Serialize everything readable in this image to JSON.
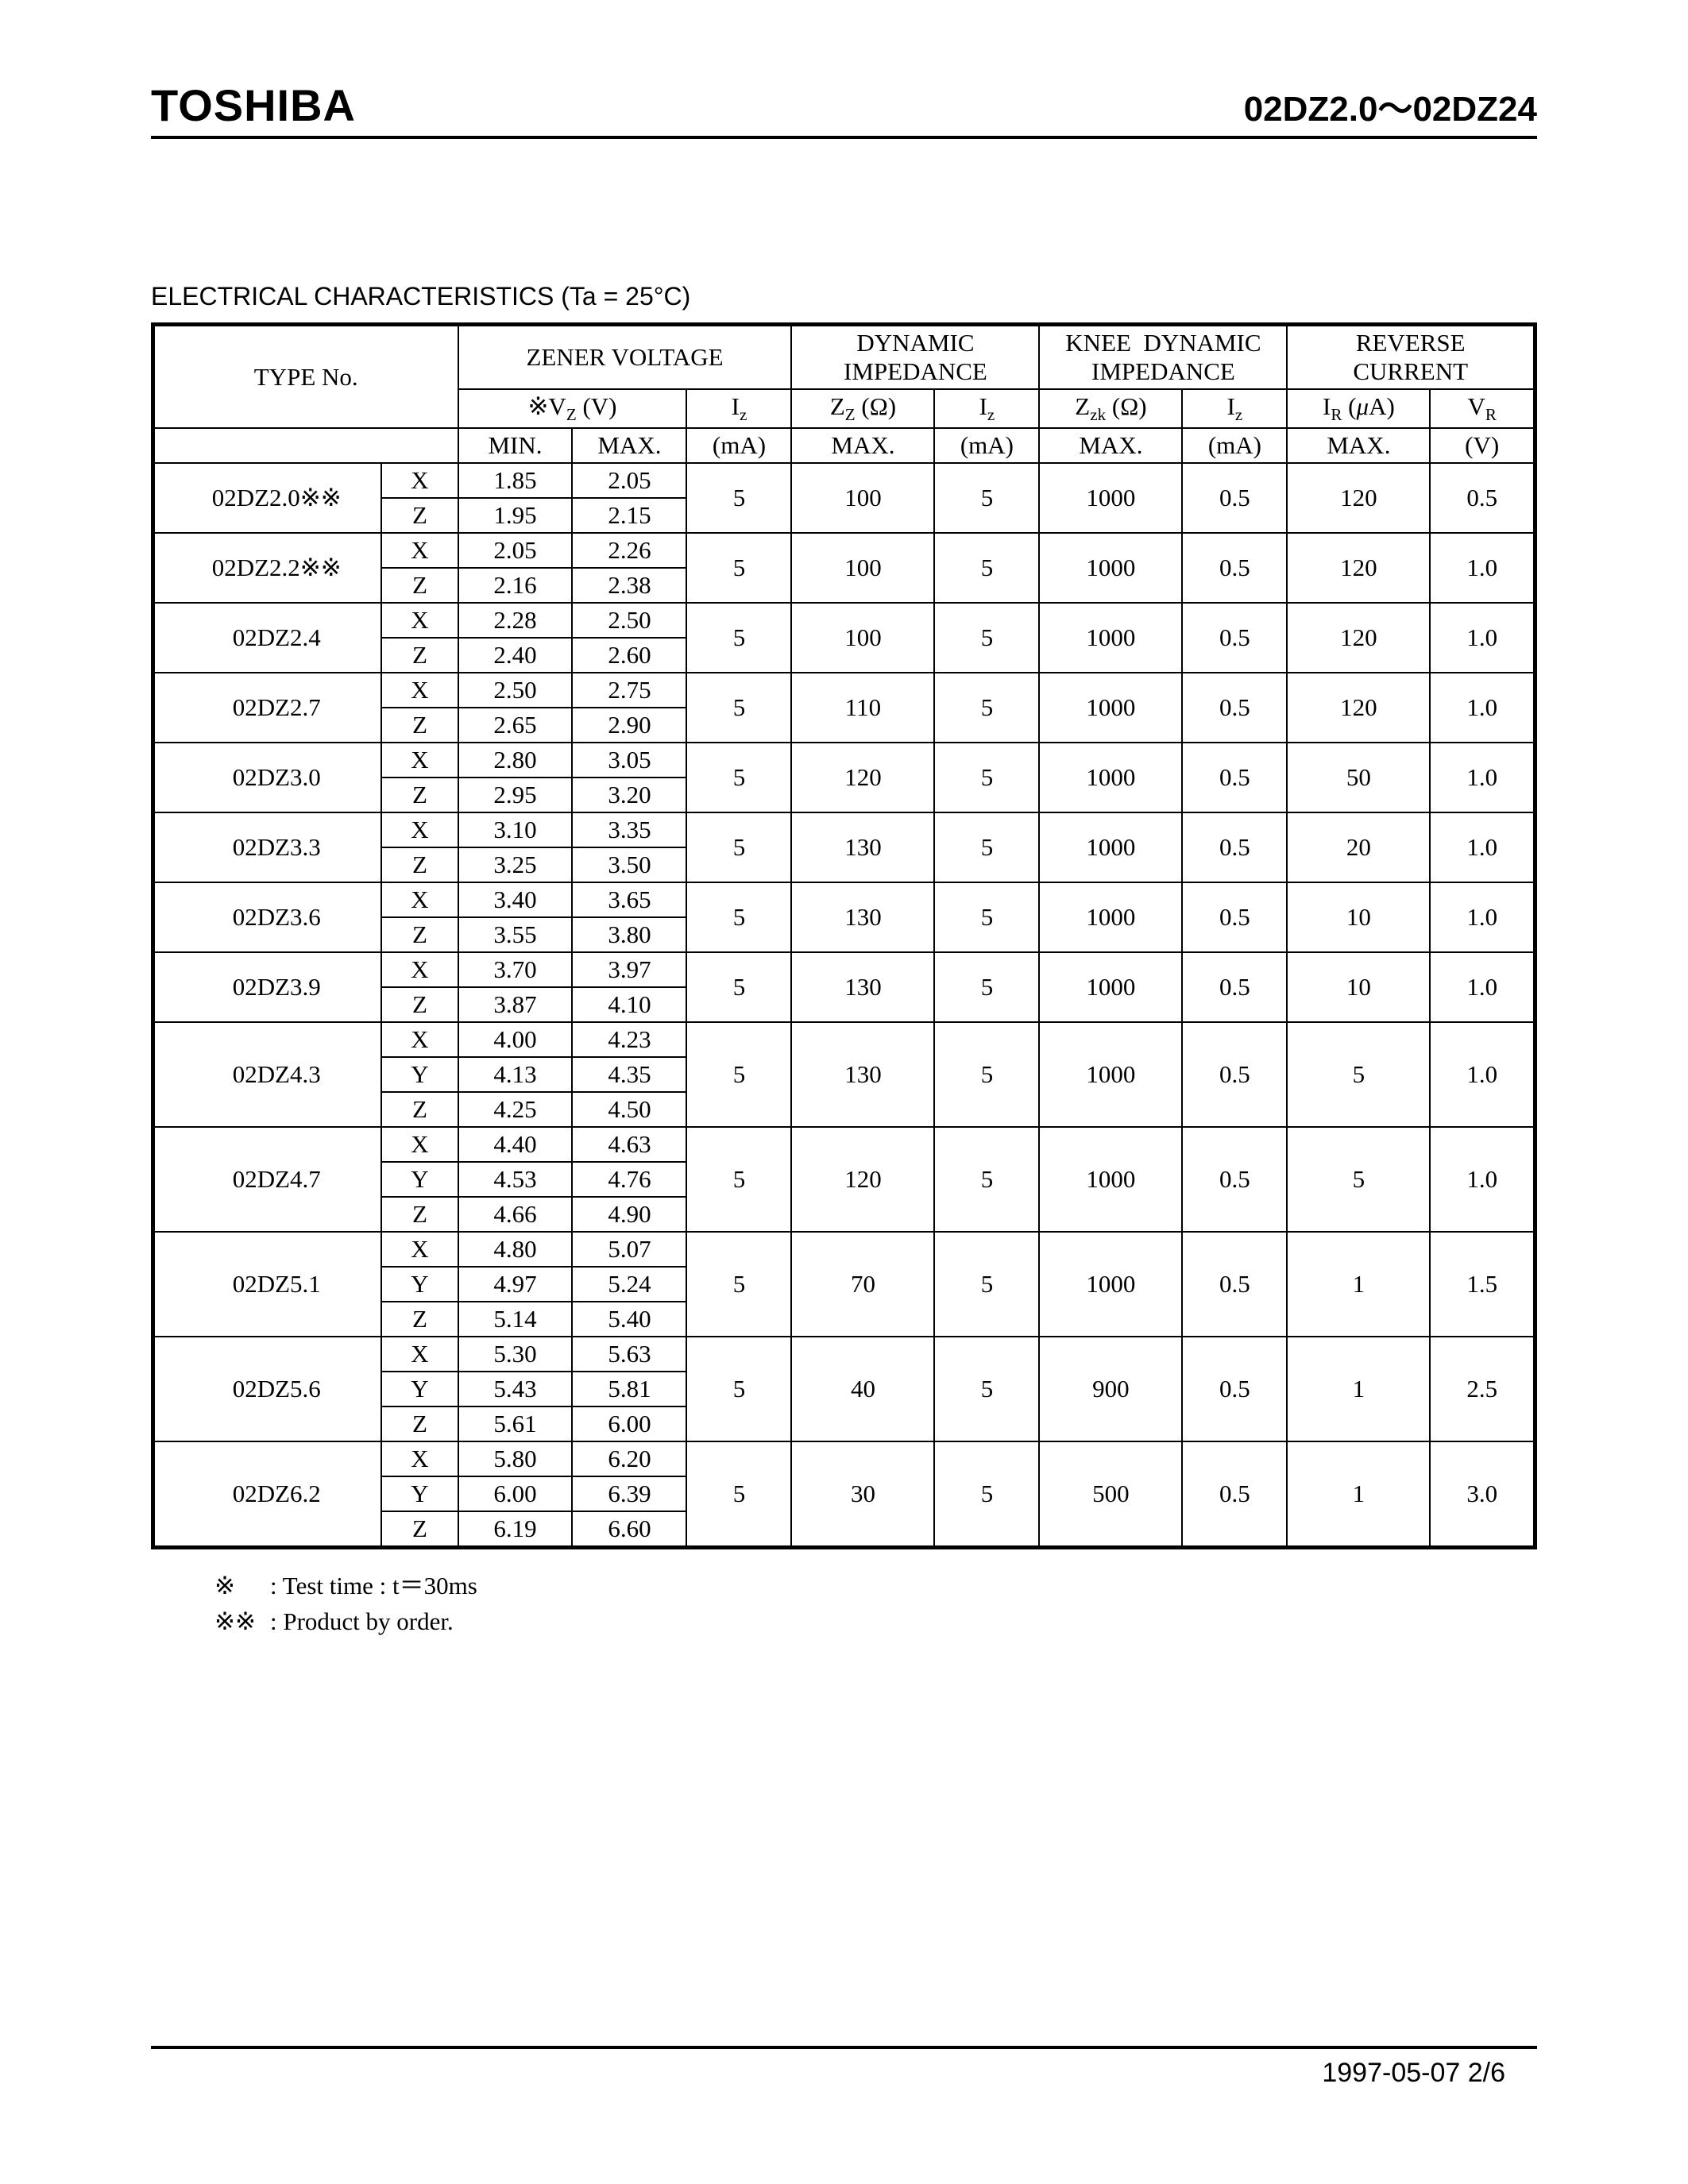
{
  "header": {
    "brand": "TOSHIBA",
    "part_range": "02DZ2.0～02DZ24"
  },
  "section_title": "ELECTRICAL  CHARACTERISTICS (Ta = 25°C)",
  "columns": {
    "type_no": "TYPE  No.",
    "zener_voltage": "ZENER  VOLTAGE",
    "dynamic_impedance": "DYNAMIC IMPEDANCE",
    "knee_dynamic_impedance": "KNEE  DYNAMIC IMPEDANCE",
    "reverse_current": "REVERSE CURRENT",
    "vz": "※V",
    "vz_sub": "Z",
    "vz_unit": "(V)",
    "iz": "I",
    "iz_sub": "z",
    "zz": "Z",
    "zz_sub": "Z",
    "zz_unit": "(Ω)",
    "zzk": "Z",
    "zzk_sub": "zk",
    "zzk_unit": "(Ω)",
    "ir": "I",
    "ir_sub": "R",
    "ir_unit_pre": "(",
    "ir_unit_mu": "μ",
    "ir_unit_post": "A)",
    "vr": "V",
    "vr_sub": "R",
    "min": "MIN.",
    "max": "MAX.",
    "ma": "(mA)",
    "v_unit": "(V)"
  },
  "rows": [
    {
      "type": "02DZ2.0※※",
      "subs": [
        {
          "s": "X",
          "min": "1.85",
          "max": "2.05"
        },
        {
          "s": "Z",
          "min": "1.95",
          "max": "2.15"
        }
      ],
      "iz1": "5",
      "zz": "100",
      "iz2": "5",
      "zzk": "1000",
      "iz3": "0.5",
      "ir": "120",
      "vr": "0.5"
    },
    {
      "type": "02DZ2.2※※",
      "subs": [
        {
          "s": "X",
          "min": "2.05",
          "max": "2.26"
        },
        {
          "s": "Z",
          "min": "2.16",
          "max": "2.38"
        }
      ],
      "iz1": "5",
      "zz": "100",
      "iz2": "5",
      "zzk": "1000",
      "iz3": "0.5",
      "ir": "120",
      "vr": "1.0"
    },
    {
      "type": "02DZ2.4",
      "subs": [
        {
          "s": "X",
          "min": "2.28",
          "max": "2.50"
        },
        {
          "s": "Z",
          "min": "2.40",
          "max": "2.60"
        }
      ],
      "iz1": "5",
      "zz": "100",
      "iz2": "5",
      "zzk": "1000",
      "iz3": "0.5",
      "ir": "120",
      "vr": "1.0"
    },
    {
      "type": "02DZ2.7",
      "subs": [
        {
          "s": "X",
          "min": "2.50",
          "max": "2.75"
        },
        {
          "s": "Z",
          "min": "2.65",
          "max": "2.90"
        }
      ],
      "iz1": "5",
      "zz": "110",
      "iz2": "5",
      "zzk": "1000",
      "iz3": "0.5",
      "ir": "120",
      "vr": "1.0"
    },
    {
      "type": "02DZ3.0",
      "subs": [
        {
          "s": "X",
          "min": "2.80",
          "max": "3.05"
        },
        {
          "s": "Z",
          "min": "2.95",
          "max": "3.20"
        }
      ],
      "iz1": "5",
      "zz": "120",
      "iz2": "5",
      "zzk": "1000",
      "iz3": "0.5",
      "ir": "50",
      "vr": "1.0"
    },
    {
      "type": "02DZ3.3",
      "subs": [
        {
          "s": "X",
          "min": "3.10",
          "max": "3.35"
        },
        {
          "s": "Z",
          "min": "3.25",
          "max": "3.50"
        }
      ],
      "iz1": "5",
      "zz": "130",
      "iz2": "5",
      "zzk": "1000",
      "iz3": "0.5",
      "ir": "20",
      "vr": "1.0"
    },
    {
      "type": "02DZ3.6",
      "subs": [
        {
          "s": "X",
          "min": "3.40",
          "max": "3.65"
        },
        {
          "s": "Z",
          "min": "3.55",
          "max": "3.80"
        }
      ],
      "iz1": "5",
      "zz": "130",
      "iz2": "5",
      "zzk": "1000",
      "iz3": "0.5",
      "ir": "10",
      "vr": "1.0"
    },
    {
      "type": "02DZ3.9",
      "subs": [
        {
          "s": "X",
          "min": "3.70",
          "max": "3.97"
        },
        {
          "s": "Z",
          "min": "3.87",
          "max": "4.10"
        }
      ],
      "iz1": "5",
      "zz": "130",
      "iz2": "5",
      "zzk": "1000",
      "iz3": "0.5",
      "ir": "10",
      "vr": "1.0"
    },
    {
      "type": "02DZ4.3",
      "subs": [
        {
          "s": "X",
          "min": "4.00",
          "max": "4.23"
        },
        {
          "s": "Y",
          "min": "4.13",
          "max": "4.35"
        },
        {
          "s": "Z",
          "min": "4.25",
          "max": "4.50"
        }
      ],
      "iz1": "5",
      "zz": "130",
      "iz2": "5",
      "zzk": "1000",
      "iz3": "0.5",
      "ir": "5",
      "vr": "1.0"
    },
    {
      "type": "02DZ4.7",
      "subs": [
        {
          "s": "X",
          "min": "4.40",
          "max": "4.63"
        },
        {
          "s": "Y",
          "min": "4.53",
          "max": "4.76"
        },
        {
          "s": "Z",
          "min": "4.66",
          "max": "4.90"
        }
      ],
      "iz1": "5",
      "zz": "120",
      "iz2": "5",
      "zzk": "1000",
      "iz3": "0.5",
      "ir": "5",
      "vr": "1.0"
    },
    {
      "type": "02DZ5.1",
      "subs": [
        {
          "s": "X",
          "min": "4.80",
          "max": "5.07"
        },
        {
          "s": "Y",
          "min": "4.97",
          "max": "5.24"
        },
        {
          "s": "Z",
          "min": "5.14",
          "max": "5.40"
        }
      ],
      "iz1": "5",
      "zz": "70",
      "iz2": "5",
      "zzk": "1000",
      "iz3": "0.5",
      "ir": "1",
      "vr": "1.5"
    },
    {
      "type": "02DZ5.6",
      "subs": [
        {
          "s": "X",
          "min": "5.30",
          "max": "5.63"
        },
        {
          "s": "Y",
          "min": "5.43",
          "max": "5.81"
        },
        {
          "s": "Z",
          "min": "5.61",
          "max": "6.00"
        }
      ],
      "iz1": "5",
      "zz": "40",
      "iz2": "5",
      "zzk": "900",
      "iz3": "0.5",
      "ir": "1",
      "vr": "2.5"
    },
    {
      "type": "02DZ6.2",
      "subs": [
        {
          "s": "X",
          "min": "5.80",
          "max": "6.20"
        },
        {
          "s": "Y",
          "min": "6.00",
          "max": "6.39"
        },
        {
          "s": "Z",
          "min": "6.19",
          "max": "6.60"
        }
      ],
      "iz1": "5",
      "zz": "30",
      "iz2": "5",
      "zzk": "500",
      "iz3": "0.5",
      "ir": "1",
      "vr": "3.0"
    }
  ],
  "footnotes": {
    "one_sym": "※",
    "one_text": ": Test  time  :  t＝30ms",
    "two_sym": "※※",
    "two_text": ": Product  by  order."
  },
  "footer": {
    "date_page": "1997-05-07    2/6"
  }
}
